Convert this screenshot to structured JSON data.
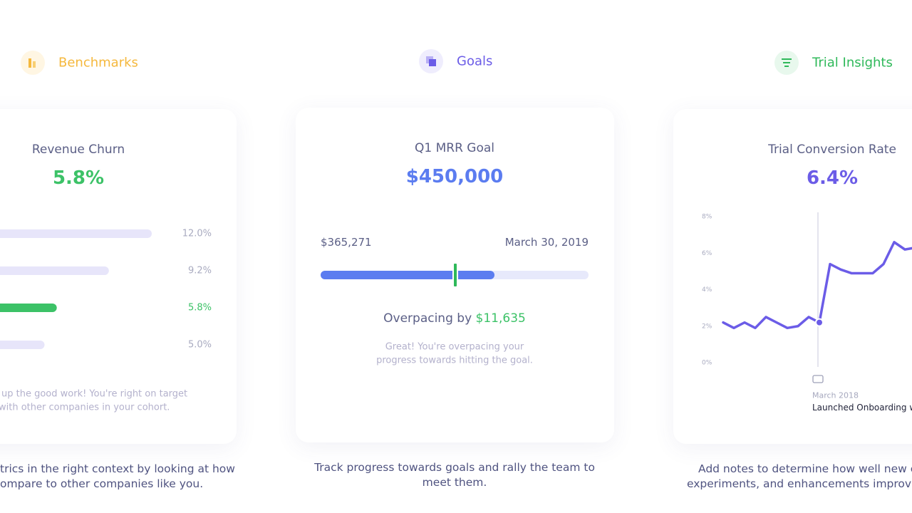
{
  "tabs": [
    "Benchmarks",
    "Goals",
    "Trial Insights"
  ],
  "benchmarks_card": {
    "title": "Revenue Churn",
    "value": "5.8%",
    "rows": [
      {
        "value": 12.0,
        "label": "12.0%",
        "color": "#e7e5fa"
      },
      {
        "value": 9.2,
        "label": "9.2%",
        "color": "#e7e5fa"
      },
      {
        "value": 5.8,
        "label": "5.8%",
        "color": "#3cc267"
      },
      {
        "value": 5.0,
        "label": "5.0%",
        "color": "#e7e5fa"
      }
    ],
    "note": [
      "up the good work! You're right on target",
      "with other companies in your cohort."
    ],
    "caption": [
      "trics in the right context by looking at how",
      "ompare to other companies like you."
    ]
  },
  "goals_card": {
    "title": "Q1 MRR Goal",
    "value": "$450,000",
    "current": "$365,271",
    "date": "March 30, 2019",
    "status": "Overpacing by",
    "amount": "$11,635",
    "note": [
      "Great! You're overpacing your",
      "progress towards hitting the goal."
    ],
    "caption": [
      "Track progress towards goals and rally the team to",
      "meet them."
    ]
  },
  "trial_card": {
    "title": "Trial Conversion Rate",
    "value": "6.4%",
    "chart": {
      "type": "line",
      "color": "#6b5ce7",
      "values": [
        2.2,
        1.9,
        2.2,
        1.9,
        2.5,
        2.2,
        1.9,
        2.0,
        2.5,
        2.2,
        5.4,
        5.1,
        4.9,
        4.9,
        4.9,
        5.4,
        6.6,
        6.2,
        6.3
      ],
      "ylim": [
        0,
        8
      ],
      "yticks": [
        {
          "value": 8,
          "label": "8%"
        },
        {
          "value": 6,
          "label": "6%"
        },
        {
          "value": 4,
          "label": "4%"
        },
        {
          "value": 2,
          "label": "2%"
        },
        {
          "value": 0,
          "label": "0%"
        }
      ]
    },
    "annotation": {
      "date": "March 2018",
      "text": "Launched Onboarding wall"
    },
    "caption": [
      "Add notes to determine how well new ca",
      "experiments, and enhancements improve"
    ]
  }
}
